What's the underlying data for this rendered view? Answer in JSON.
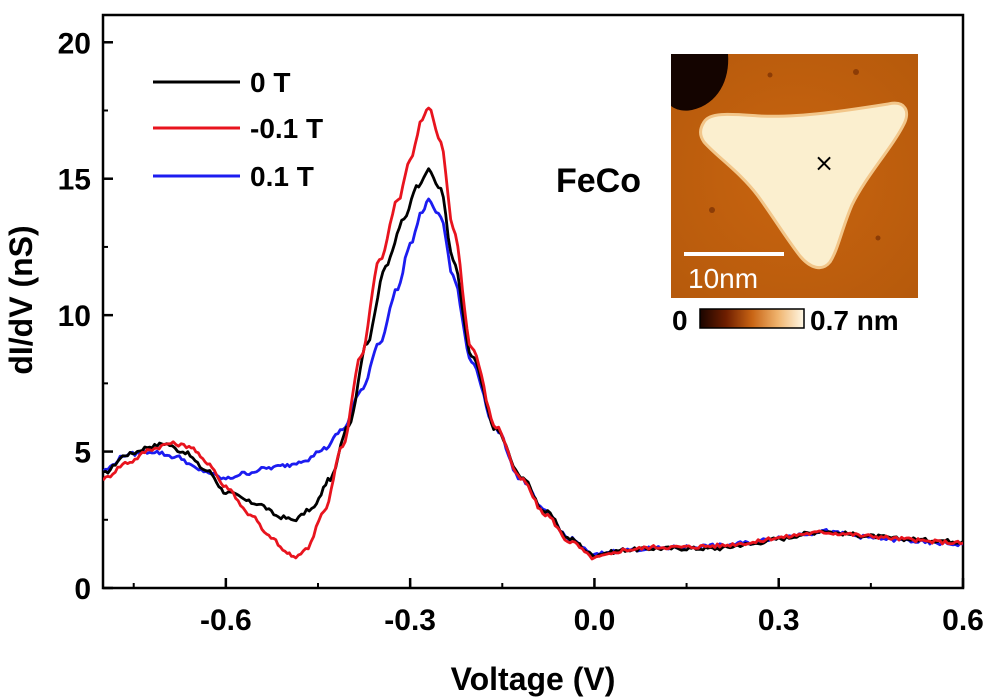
{
  "chart_data": {
    "type": "line",
    "xlabel": "Voltage (V)",
    "ylabel": "dI/dV (nS)",
    "xlim": [
      -0.8,
      0.6
    ],
    "ylim": [
      0,
      21
    ],
    "xticks": [
      -0.6,
      -0.3,
      0.0,
      0.3,
      0.6
    ],
    "xtick_labels": [
      "-0.6",
      "-0.3",
      "0.0",
      "0.3",
      "0.6"
    ],
    "yticks": [
      0,
      5,
      10,
      15,
      20
    ],
    "ytick_labels": [
      "0",
      "5",
      "10",
      "15",
      "20"
    ],
    "legend_position": "top-left",
    "series": [
      {
        "name": "0 T",
        "color": "#000000",
        "x": [
          -0.8,
          -0.76,
          -0.72,
          -0.7,
          -0.67,
          -0.63,
          -0.6,
          -0.55,
          -0.51,
          -0.49,
          -0.46,
          -0.43,
          -0.4,
          -0.37,
          -0.34,
          -0.31,
          -0.29,
          -0.27,
          -0.25,
          -0.23,
          -0.2,
          -0.16,
          -0.12,
          -0.08,
          -0.04,
          0.0,
          0.02,
          0.05,
          0.1,
          0.15,
          0.2,
          0.25,
          0.3,
          0.35,
          0.37,
          0.4,
          0.45,
          0.5,
          0.55,
          0.6
        ],
        "values": [
          4.2,
          4.9,
          5.2,
          5.3,
          5.0,
          4.3,
          3.5,
          3.1,
          2.6,
          2.5,
          2.9,
          4.0,
          6.0,
          9.0,
          11.8,
          13.5,
          14.7,
          15.3,
          14.6,
          12.0,
          8.5,
          5.8,
          4.1,
          2.8,
          1.8,
          1.2,
          1.3,
          1.4,
          1.45,
          1.45,
          1.45,
          1.6,
          1.8,
          2.0,
          2.1,
          2.0,
          1.9,
          1.8,
          1.75,
          1.7
        ]
      },
      {
        "name": "-0.1 T",
        "color": "#e8141e",
        "x": [
          -0.8,
          -0.76,
          -0.72,
          -0.69,
          -0.66,
          -0.63,
          -0.6,
          -0.56,
          -0.53,
          -0.5,
          -0.49,
          -0.47,
          -0.44,
          -0.41,
          -0.38,
          -0.35,
          -0.32,
          -0.3,
          -0.28,
          -0.27,
          -0.25,
          -0.23,
          -0.2,
          -0.16,
          -0.12,
          -0.08,
          -0.04,
          0.0,
          0.02,
          0.05,
          0.1,
          0.15,
          0.2,
          0.25,
          0.3,
          0.35,
          0.37,
          0.4,
          0.45,
          0.5,
          0.55,
          0.6
        ],
        "values": [
          4.0,
          4.6,
          5.1,
          5.3,
          5.2,
          4.6,
          3.7,
          2.7,
          1.9,
          1.3,
          1.1,
          1.4,
          2.8,
          5.2,
          8.5,
          12.0,
          14.2,
          15.7,
          17.2,
          17.6,
          16.3,
          13.2,
          8.8,
          5.9,
          4.0,
          2.7,
          1.7,
          1.1,
          1.2,
          1.4,
          1.5,
          1.5,
          1.55,
          1.65,
          1.85,
          2.0,
          2.05,
          2.0,
          1.9,
          1.8,
          1.7,
          1.65
        ]
      },
      {
        "name": "0.1 T",
        "color": "#1c1cf0",
        "x": [
          -0.8,
          -0.76,
          -0.72,
          -0.68,
          -0.64,
          -0.6,
          -0.57,
          -0.53,
          -0.5,
          -0.47,
          -0.44,
          -0.41,
          -0.38,
          -0.35,
          -0.32,
          -0.3,
          -0.28,
          -0.27,
          -0.25,
          -0.23,
          -0.2,
          -0.16,
          -0.12,
          -0.08,
          -0.04,
          0.0,
          0.02,
          0.05,
          0.1,
          0.15,
          0.2,
          0.25,
          0.3,
          0.35,
          0.37,
          0.4,
          0.45,
          0.5,
          0.55,
          0.6
        ],
        "values": [
          4.3,
          4.9,
          5.0,
          4.8,
          4.3,
          4.0,
          4.2,
          4.4,
          4.5,
          4.7,
          5.1,
          5.8,
          7.2,
          9.0,
          11.0,
          12.6,
          13.8,
          14.2,
          13.6,
          11.4,
          8.3,
          5.8,
          4.0,
          2.8,
          1.8,
          1.2,
          1.3,
          1.4,
          1.45,
          1.5,
          1.55,
          1.65,
          1.85,
          2.0,
          2.1,
          2.0,
          1.85,
          1.75,
          1.65,
          1.6
        ]
      }
    ],
    "inset": {
      "title": "FeCo",
      "scale_bar_label": "10nm",
      "colorbar_min_label": "0",
      "colorbar_max_label": "0.7 nm",
      "marker": "×"
    }
  }
}
